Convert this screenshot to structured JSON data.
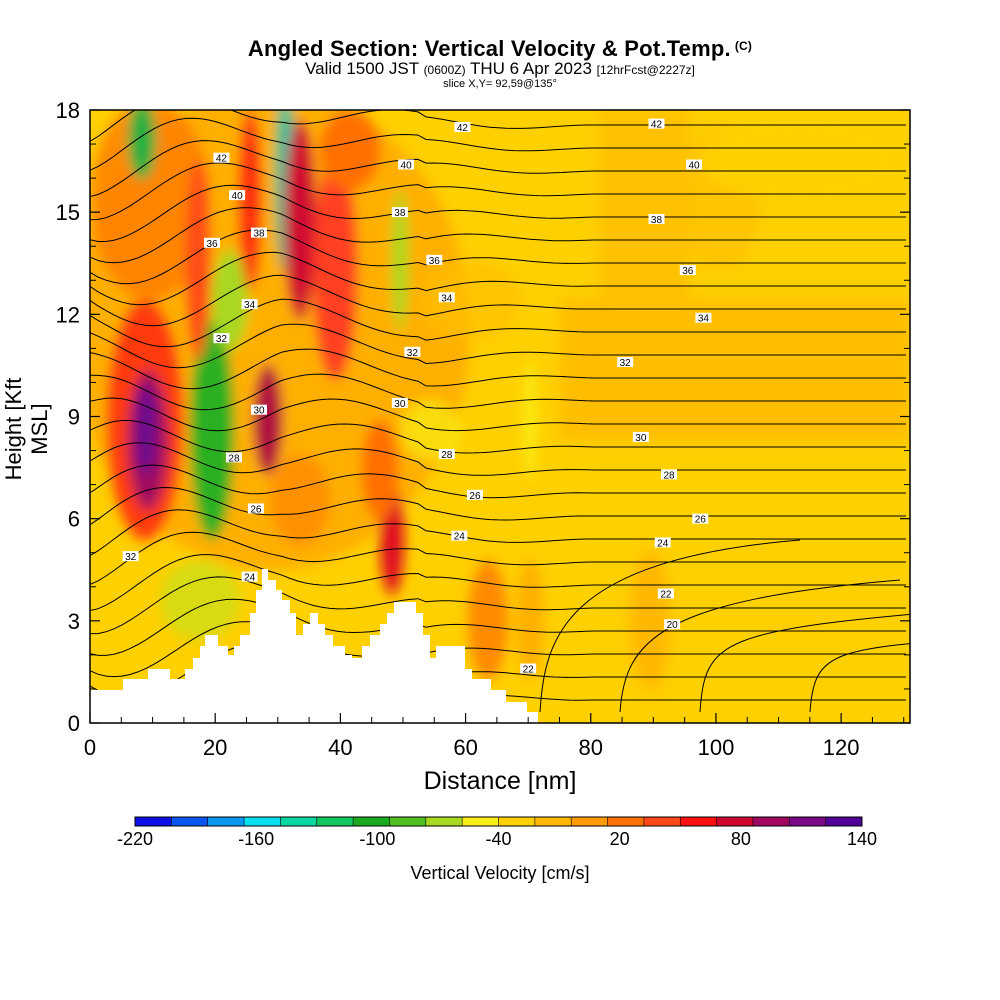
{
  "title": "Angled Section: Vertical Velocity & Pot.Temp.",
  "title_copyright": "(C)",
  "subtitle_valid": "Valid 1500 JST",
  "subtitle_utc": "(0600Z)",
  "subtitle_date": "THU 6 Apr 2023",
  "subtitle_fcst": "[12hrFcst@2227z]",
  "slice_label": "slice X,Y= 92,59@135°",
  "chart_data": {
    "type": "heatmap",
    "xlabel": "Distance [nm]",
    "ylabel": "Height [Kft MSL]",
    "xlim": [
      0,
      131
    ],
    "ylim": [
      0,
      18
    ],
    "x_ticks": [
      "0",
      "20",
      "40",
      "60",
      "80",
      "100",
      "120"
    ],
    "y_ticks": [
      "0",
      "3",
      "6",
      "9",
      "12",
      "15",
      "18"
    ],
    "colorbar": {
      "label": "Vertical Velocity [cm/s]",
      "tick_labels": [
        "-220",
        "-160",
        "-100",
        "-40",
        "20",
        "80",
        "140"
      ],
      "range": [
        -220,
        140
      ],
      "colors": [
        "#1010e8",
        "#0a55f0",
        "#0898f0",
        "#08e0f0",
        "#08d8a0",
        "#10c860",
        "#1aaa20",
        "#50c020",
        "#a8d820",
        "#f8ee18",
        "#ffd000",
        "#ffb800",
        "#ff9a00",
        "#ff7200",
        "#ff4818",
        "#ff1010",
        "#d00830",
        "#a00860",
        "#7c0888",
        "#500098"
      ]
    },
    "contour_labels": [
      {
        "x": 21,
        "y": 16.6,
        "text": "42"
      },
      {
        "x": 59.5,
        "y": 17.5,
        "text": "42"
      },
      {
        "x": 90.5,
        "y": 17.6,
        "text": "42"
      },
      {
        "x": 23.5,
        "y": 15.5,
        "text": "40"
      },
      {
        "x": 50.5,
        "y": 16.4,
        "text": "40"
      },
      {
        "x": 96.5,
        "y": 16.4,
        "text": "40"
      },
      {
        "x": 27,
        "y": 14.4,
        "text": "38"
      },
      {
        "x": 49.5,
        "y": 15.0,
        "text": "38"
      },
      {
        "x": 90.5,
        "y": 14.8,
        "text": "38"
      },
      {
        "x": 19.5,
        "y": 14.1,
        "text": "36"
      },
      {
        "x": 55,
        "y": 13.6,
        "text": "36"
      },
      {
        "x": 95.5,
        "y": 13.3,
        "text": "36"
      },
      {
        "x": 25.5,
        "y": 12.3,
        "text": "34"
      },
      {
        "x": 57,
        "y": 12.5,
        "text": "34"
      },
      {
        "x": 98,
        "y": 11.9,
        "text": "34"
      },
      {
        "x": 21,
        "y": 11.3,
        "text": "32"
      },
      {
        "x": 51.5,
        "y": 10.9,
        "text": "32"
      },
      {
        "x": 85.5,
        "y": 10.6,
        "text": "32"
      },
      {
        "x": 27,
        "y": 9.2,
        "text": "30"
      },
      {
        "x": 49.5,
        "y": 9.4,
        "text": "30"
      },
      {
        "x": 88,
        "y": 8.4,
        "text": "30"
      },
      {
        "x": 23,
        "y": 7.8,
        "text": "28"
      },
      {
        "x": 57,
        "y": 7.9,
        "text": "28"
      },
      {
        "x": 92.5,
        "y": 7.3,
        "text": "28"
      },
      {
        "x": 26.5,
        "y": 6.3,
        "text": "26"
      },
      {
        "x": 61.5,
        "y": 6.7,
        "text": "26"
      },
      {
        "x": 97.5,
        "y": 6.0,
        "text": "26"
      },
      {
        "x": 6.5,
        "y": 4.9,
        "text": "32"
      },
      {
        "x": 59,
        "y": 5.5,
        "text": "24"
      },
      {
        "x": 91.5,
        "y": 5.3,
        "text": "24"
      },
      {
        "x": 25.5,
        "y": 4.3,
        "text": "24"
      },
      {
        "x": 92,
        "y": 3.8,
        "text": "22"
      },
      {
        "x": 93,
        "y": 2.9,
        "text": "20"
      },
      {
        "x": 70,
        "y": 1.6,
        "text": "22"
      }
    ]
  }
}
